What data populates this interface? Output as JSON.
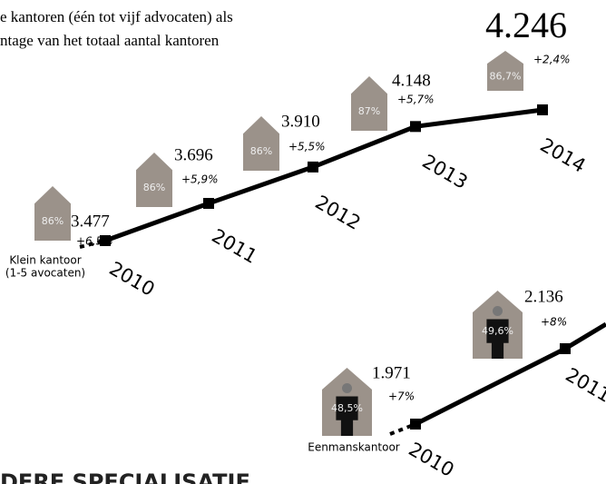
{
  "header_lines": [
    "e kantoren (één tot vijf advocaten) als",
    "ntage van het totaal aantal kantoren"
  ],
  "footer": "DERE SPECIALISATIE",
  "chart_data": {
    "type": "line",
    "series": [
      {
        "name": "Klein kantoor",
        "subname": "(1-5 avocaten)",
        "color": "#000000",
        "categories": [
          "2010",
          "2011",
          "2012",
          "2013",
          "2014"
        ],
        "values": [
          3477,
          3696,
          3910,
          4148,
          4246
        ],
        "value_labels": [
          "3.477",
          "3.696",
          "3.910",
          "4.148",
          "4.246"
        ],
        "growth": [
          6.5,
          5.9,
          5.5,
          5.7,
          2.4
        ],
        "growth_labels": [
          "+6,5%",
          "+5,9%",
          "+5,5%",
          "+5,7%",
          "+2,4%"
        ],
        "share": [
          86,
          86,
          86,
          87,
          86.7
        ],
        "share_labels": [
          "86%",
          "86%",
          "86%",
          "87%",
          "86,7%"
        ]
      },
      {
        "name": "Eenmanskantoor",
        "color": "#000000",
        "categories": [
          "2010",
          "2011"
        ],
        "values": [
          1971,
          2136
        ],
        "value_labels": [
          "1.971",
          "2.136"
        ],
        "growth": [
          7,
          8
        ],
        "growth_labels": [
          "+7%",
          "+8%"
        ],
        "share": [
          48.5,
          49.6
        ],
        "share_labels": [
          "48,5%",
          "49,6%"
        ]
      }
    ]
  }
}
